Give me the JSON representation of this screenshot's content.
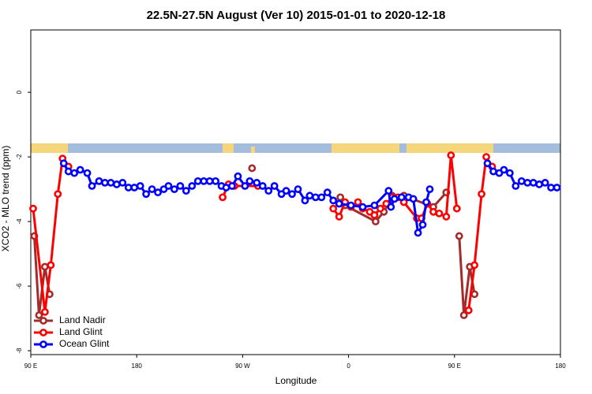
{
  "chart_data": {
    "type": "line",
    "title": "22.5N-27.5N August (Ver 10)   2015-01-01 to 2020-12-18",
    "x_label": "Longitude",
    "y_label": "XCO2 - MLO trend (ppm)",
    "xlim": [
      90,
      540
    ],
    "ylim": [
      -8.12,
      1.93
    ],
    "xticks": [
      {
        "value": 90,
        "label": "90 E"
      },
      {
        "value": 180,
        "label": "180"
      },
      {
        "value": 270,
        "label": "90 W"
      },
      {
        "value": 360,
        "label": "0"
      },
      {
        "value": 450,
        "label": "90 E"
      },
      {
        "value": 540,
        "label": "180"
      }
    ],
    "yticks": [
      -8,
      -6,
      -4,
      -2,
      0
    ],
    "legend": "bottom-left",
    "series": [
      {
        "name": "Land Nadir",
        "color": "#a52a2a",
        "x": [
          93,
          97,
          102,
          106,
          null,
          278,
          null,
          353,
          357,
          383,
          390,
          397,
          407,
          432,
          443,
          null,
          454,
          458,
          463,
          467
        ],
        "values": [
          -4.45,
          -6.9,
          -5.4,
          -6.25,
          null,
          -2.35,
          null,
          -3.25,
          -3.5,
          -4.0,
          -3.7,
          -3.2,
          -3.2,
          -3.55,
          -3.1,
          null,
          -4.45,
          -6.9,
          -5.4,
          -6.25
        ]
      },
      {
        "name": "Land Glint",
        "color": "#ff0000",
        "x": [
          92,
          102,
          107,
          113,
          117,
          122,
          null,
          253,
          258,
          263,
          283,
          null,
          347,
          352,
          357,
          362,
          368,
          372,
          378,
          382,
          387,
          392,
          397,
          402,
          407,
          418,
          422,
          427,
          432,
          437,
          443,
          447,
          452,
          null,
          462,
          467,
          473,
          477,
          482
        ],
        "values": [
          -3.6,
          -6.8,
          -5.35,
          -3.15,
          -2.05,
          -2.3,
          null,
          -3.25,
          -2.85,
          -2.9,
          -2.9,
          null,
          -3.6,
          -3.85,
          -3.4,
          -3.55,
          -3.4,
          -3.6,
          -3.7,
          -3.8,
          -3.6,
          -3.45,
          -3.25,
          -3.25,
          -3.4,
          -3.9,
          -3.9,
          -3.45,
          -3.7,
          -3.75,
          -3.85,
          -1.95,
          -3.6,
          null,
          -6.75,
          -5.35,
          -3.15,
          -2.0,
          -2.3
        ]
      },
      {
        "name": "Ocean Glint",
        "color": "#0000ff",
        "x": [
          118,
          122,
          127,
          132,
          138,
          142,
          148,
          153,
          158,
          163,
          168,
          173,
          178,
          183,
          188,
          193,
          198,
          203,
          207,
          212,
          217,
          222,
          227,
          232,
          237,
          242,
          247,
          252,
          256,
          261,
          266,
          272,
          276,
          282,
          287,
          292,
          297,
          303,
          307,
          312,
          317,
          323,
          327,
          332,
          337,
          342,
          347,
          352,
          362,
          372,
          382,
          394,
          396,
          399,
          405,
          411,
          415,
          419,
          423,
          426,
          429,
          null,
          478,
          483,
          488,
          492,
          497,
          502,
          507,
          512,
          517,
          522,
          527,
          532,
          537
        ],
        "values": [
          -2.2,
          -2.45,
          -2.5,
          -2.4,
          -2.5,
          -2.9,
          -2.75,
          -2.8,
          -2.8,
          -2.85,
          -2.8,
          -2.95,
          -2.95,
          -2.9,
          -3.15,
          -3.0,
          -3.1,
          -3.0,
          -2.9,
          -3.0,
          -2.9,
          -3.05,
          -2.9,
          -2.75,
          -2.75,
          -2.75,
          -2.75,
          -2.9,
          -2.95,
          -2.9,
          -2.6,
          -2.9,
          -2.75,
          -2.8,
          -2.9,
          -3.05,
          -2.9,
          -3.15,
          -3.05,
          -3.15,
          -3.0,
          -3.35,
          -3.2,
          -3.25,
          -3.25,
          -3.1,
          -3.35,
          -3.45,
          -3.5,
          -3.55,
          -3.5,
          -3.05,
          -3.55,
          -3.3,
          -3.25,
          -3.25,
          -3.3,
          -4.35,
          -4.1,
          -3.4,
          -3.0,
          null,
          -2.2,
          -2.45,
          -2.5,
          -2.4,
          -2.5,
          -2.9,
          -2.75,
          -2.8,
          -2.8,
          -2.85,
          -2.8,
          -2.95,
          -2.95
        ]
      }
    ]
  }
}
